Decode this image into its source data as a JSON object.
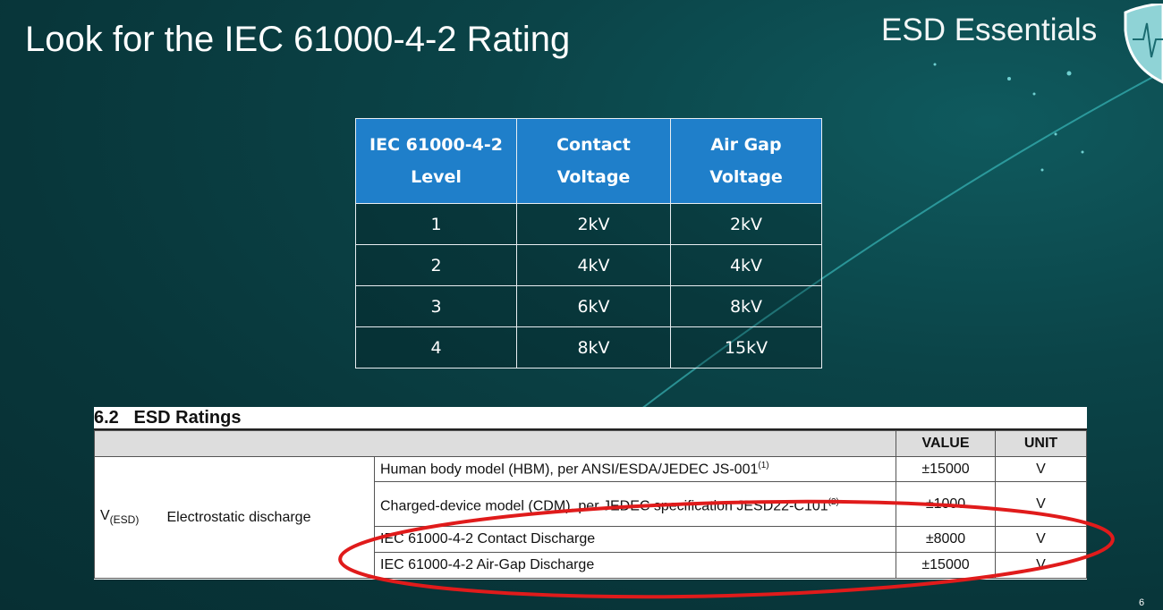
{
  "slide": {
    "title": "Look for the IEC 61000-4-2 Rating",
    "brand": "ESD Essentials",
    "page_number": "6"
  },
  "iec_table": {
    "headers": [
      [
        "IEC 61000-4-2",
        "Level"
      ],
      [
        "Contact",
        "Voltage"
      ],
      [
        "Air Gap",
        "Voltage"
      ]
    ],
    "rows": [
      [
        "1",
        "2kV",
        "2kV"
      ],
      [
        "2",
        "4kV",
        "4kV"
      ],
      [
        "3",
        "6kV",
        "8kV"
      ],
      [
        "4",
        "8kV",
        "15kV"
      ]
    ],
    "header_color": "#1f7fca"
  },
  "esd_ratings": {
    "heading": "6.2   ESD Ratings",
    "col_value": "VALUE",
    "col_unit": "UNIT",
    "symbol": "V",
    "symbol_sub": "(ESD)",
    "parameter": "Electrostatic discharge",
    "rows": [
      {
        "condition": "Human body model (HBM), per ANSI/ESDA/JEDEC JS-001",
        "note": "(1)",
        "value": "±15000",
        "unit": "V"
      },
      {
        "condition": "Charged-device model (CDM), per JEDEC specification JESD22-C101",
        "note": "(2)",
        "value": "±1000",
        "unit": "V"
      },
      {
        "condition": "IEC 61000-4-2 Contact Discharge",
        "note": "",
        "value": "±8000",
        "unit": "V"
      },
      {
        "condition": "IEC 61000-4-2 Air-Gap Discharge",
        "note": "",
        "value": "±15000",
        "unit": "V"
      }
    ],
    "highlight_color": "#e01b1b"
  }
}
